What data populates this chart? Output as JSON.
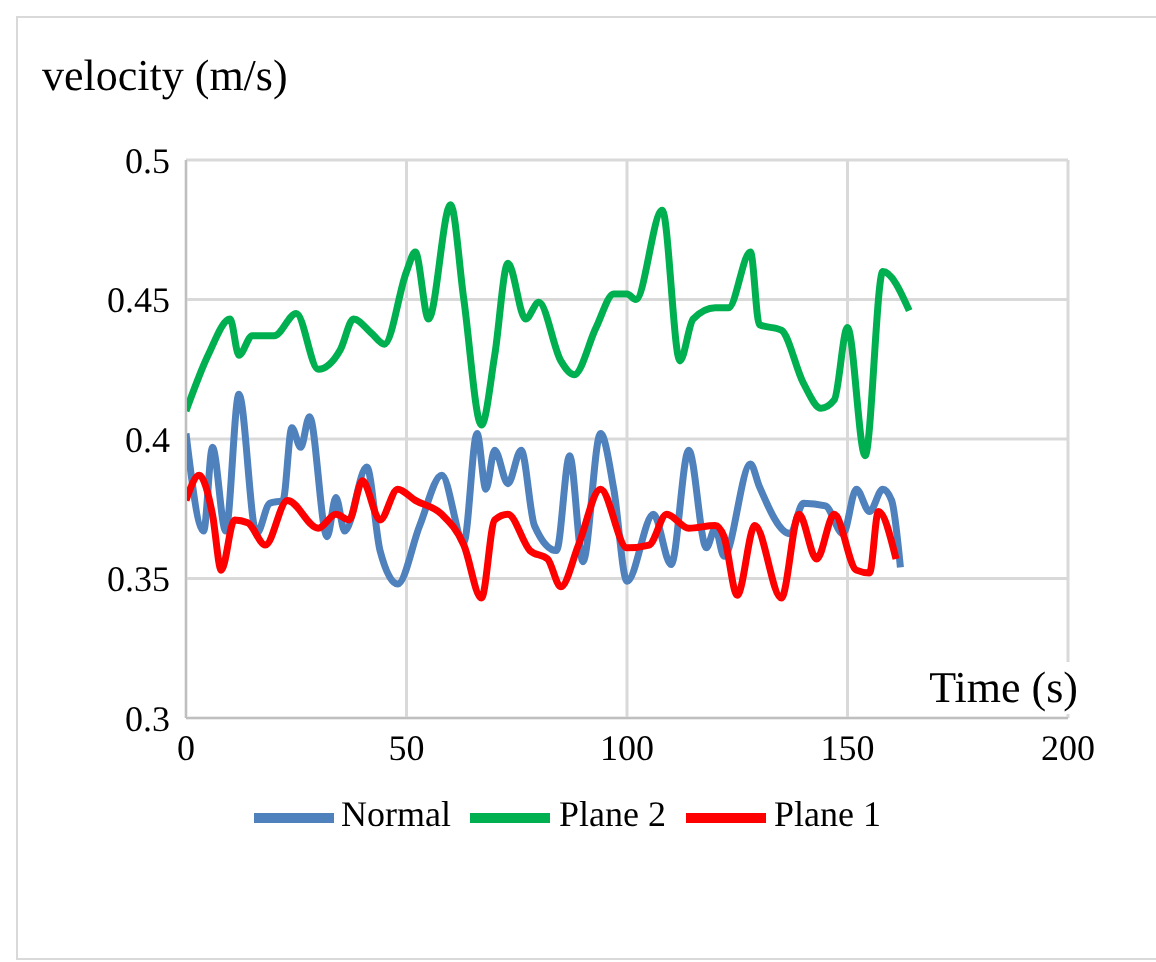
{
  "chart_data": {
    "type": "line",
    "xlabel": "Time (s)",
    "ylabel": "velocity (m/s)",
    "xlim": [
      0,
      200
    ],
    "xticks": [
      0,
      50,
      100,
      150,
      200
    ],
    "ylim": [
      0.3,
      0.5
    ],
    "yticks": [
      0.3,
      0.35,
      0.4,
      0.45,
      0.5
    ],
    "grid": true,
    "legend": "bottom",
    "marker": "none",
    "line_style": "solid",
    "series": [
      {
        "name": "Normal",
        "color": "#4f81bd",
        "x": [
          0,
          4,
          6,
          9,
          12,
          16,
          19,
          22,
          24,
          26,
          28,
          32,
          34,
          36,
          41,
          44,
          48,
          53,
          58,
          63,
          66,
          68,
          70,
          73,
          76,
          79,
          84,
          87,
          90,
          94,
          97,
          100,
          106,
          110,
          114,
          118,
          120,
          122,
          128,
          130,
          137,
          140,
          145,
          149,
          152,
          155,
          158,
          160,
          162
        ],
        "values": [
          0.402,
          0.367,
          0.397,
          0.367,
          0.416,
          0.366,
          0.377,
          0.378,
          0.404,
          0.397,
          0.408,
          0.365,
          0.379,
          0.367,
          0.39,
          0.36,
          0.348,
          0.369,
          0.387,
          0.363,
          0.402,
          0.382,
          0.396,
          0.384,
          0.396,
          0.369,
          0.36,
          0.394,
          0.356,
          0.402,
          0.382,
          0.349,
          0.373,
          0.355,
          0.396,
          0.361,
          0.368,
          0.358,
          0.391,
          0.383,
          0.366,
          0.377,
          0.376,
          0.366,
          0.382,
          0.374,
          0.382,
          0.378,
          0.354
        ]
      },
      {
        "name": "Plane 2",
        "color": "#00b050",
        "x": [
          0,
          5,
          10,
          12,
          15,
          20,
          25,
          30,
          35,
          38,
          42,
          45,
          50,
          52,
          55,
          60,
          63,
          67,
          70,
          73,
          77,
          80,
          85,
          88,
          93,
          97,
          100,
          102,
          108,
          112,
          115,
          120,
          123,
          128,
          130,
          135,
          140,
          144,
          147,
          150,
          154,
          158,
          164
        ],
        "values": [
          0.41,
          0.43,
          0.443,
          0.43,
          0.437,
          0.437,
          0.445,
          0.425,
          0.432,
          0.443,
          0.438,
          0.434,
          0.46,
          0.467,
          0.443,
          0.484,
          0.45,
          0.405,
          0.43,
          0.463,
          0.443,
          0.449,
          0.428,
          0.423,
          0.44,
          0.452,
          0.452,
          0.45,
          0.482,
          0.428,
          0.443,
          0.447,
          0.447,
          0.467,
          0.441,
          0.439,
          0.42,
          0.411,
          0.414,
          0.44,
          0.394,
          0.46,
          0.446
        ]
      },
      {
        "name": "Plane 1",
        "color": "#ff0000",
        "x": [
          0,
          3,
          6,
          8,
          11,
          14,
          18,
          23,
          30,
          34,
          37,
          40,
          44,
          48,
          52,
          58,
          63,
          67,
          70,
          73,
          78,
          82,
          85,
          89,
          94,
          100,
          105,
          109,
          114,
          120,
          122,
          125,
          129,
          135,
          139,
          143,
          147,
          152,
          155,
          157,
          161
        ],
        "values": [
          0.378,
          0.387,
          0.373,
          0.353,
          0.371,
          0.37,
          0.362,
          0.378,
          0.368,
          0.373,
          0.371,
          0.385,
          0.371,
          0.382,
          0.378,
          0.373,
          0.362,
          0.343,
          0.371,
          0.373,
          0.36,
          0.357,
          0.347,
          0.362,
          0.382,
          0.361,
          0.362,
          0.373,
          0.368,
          0.369,
          0.365,
          0.344,
          0.369,
          0.343,
          0.373,
          0.357,
          0.373,
          0.353,
          0.352,
          0.374,
          0.357
        ]
      }
    ]
  }
}
